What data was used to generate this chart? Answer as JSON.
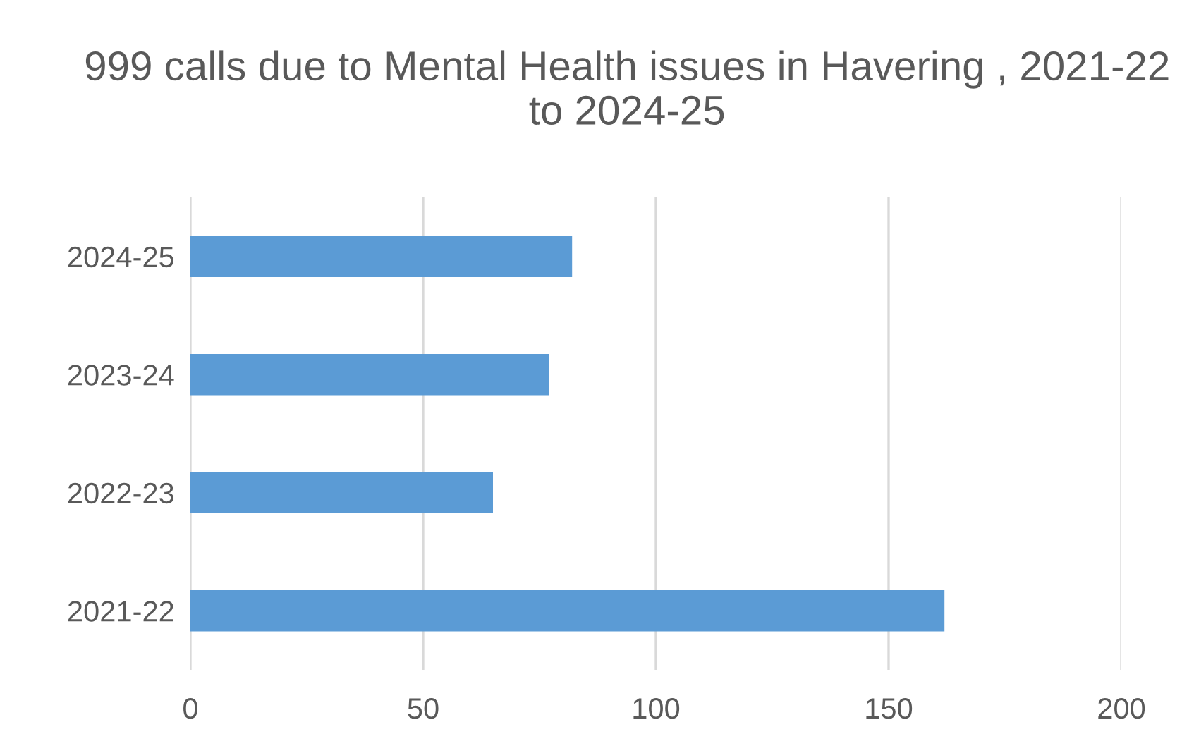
{
  "chart_data": {
    "type": "bar",
    "orientation": "horizontal",
    "title": "999 calls due to Mental Health issues in Havering , 2021-22 to 2024-25",
    "categories": [
      "2024-25",
      "2023-24",
      "2022-23",
      "2021-22"
    ],
    "values": [
      82,
      77,
      65,
      162
    ],
    "color": "#5b9bd5",
    "xlim": [
      0,
      200
    ],
    "xticks": [
      0,
      50,
      100,
      150,
      200
    ],
    "grid": "x",
    "legend": false
  }
}
